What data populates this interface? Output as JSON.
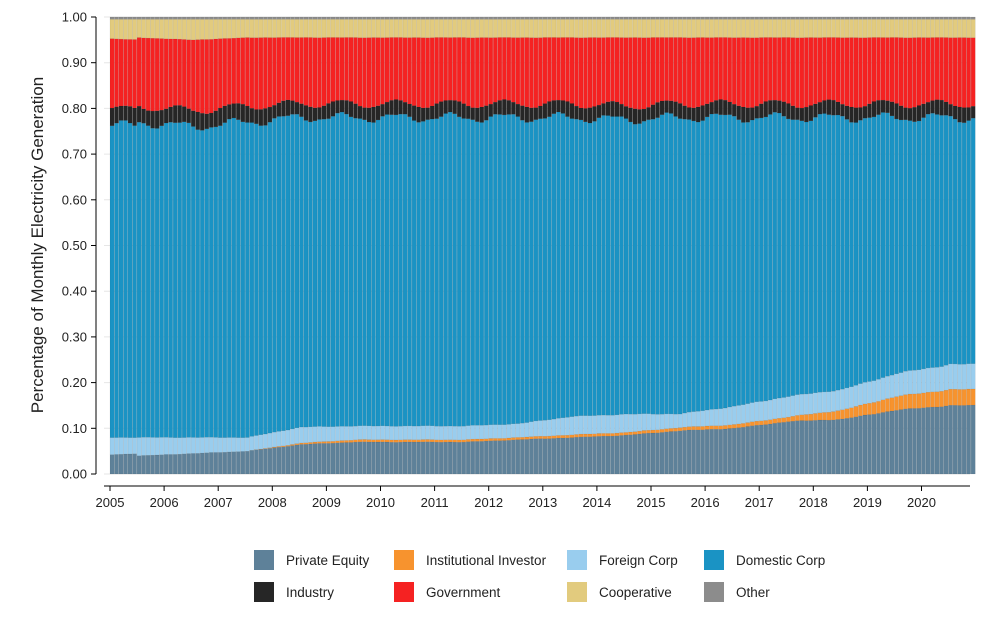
{
  "chart_data": {
    "type": "bar",
    "stacked": true,
    "title": "",
    "xlabel": "",
    "ylabel": "Percentage of Monthly Electricity Generation",
    "ylim": [
      0,
      1
    ],
    "y_ticks": [
      "0.00",
      "0.10",
      "0.20",
      "0.30",
      "0.40",
      "0.50",
      "0.60",
      "0.70",
      "0.80",
      "0.90",
      "1.00"
    ],
    "x_ticks": [
      "2005",
      "2006",
      "2007",
      "2008",
      "2009",
      "2010",
      "2011",
      "2012",
      "2013",
      "2014",
      "2015",
      "2016",
      "2017",
      "2018",
      "2019",
      "2020"
    ],
    "period": "monthly",
    "start": "2005-01",
    "months": 192,
    "grid": true,
    "legend_position": "bottom",
    "series": [
      {
        "name": "Private Equity",
        "color": "#5e8199",
        "annual_values": [
          0.04,
          0.045,
          0.05,
          0.065,
          0.07,
          0.07,
          0.07,
          0.075,
          0.08,
          0.085,
          0.095,
          0.1,
          0.115,
          0.12,
          0.14,
          0.15
        ]
      },
      {
        "name": "Institutional Investor",
        "color": "#f7932e",
        "annual_values": [
          0.0,
          0.0,
          0.0,
          0.003,
          0.005,
          0.005,
          0.005,
          0.005,
          0.006,
          0.006,
          0.007,
          0.008,
          0.01,
          0.02,
          0.03,
          0.035
        ]
      },
      {
        "name": "Foreign Corp",
        "color": "#99cdee",
        "annual_values": [
          0.04,
          0.035,
          0.03,
          0.035,
          0.03,
          0.03,
          0.03,
          0.03,
          0.04,
          0.04,
          0.03,
          0.04,
          0.045,
          0.045,
          0.05,
          0.055
        ]
      },
      {
        "name": "Domestic Corp",
        "color": "#1a93c4",
        "annual_values": [
          0.69,
          0.68,
          0.69,
          0.68,
          0.675,
          0.675,
          0.675,
          0.67,
          0.655,
          0.645,
          0.65,
          0.632,
          0.61,
          0.595,
          0.56,
          0.54
        ]
      },
      {
        "name": "Industry",
        "color": "#262626",
        "annual_values": [
          0.035,
          0.035,
          0.035,
          0.03,
          0.03,
          0.03,
          0.03,
          0.03,
          0.03,
          0.03,
          0.03,
          0.03,
          0.03,
          0.03,
          0.03,
          0.03
        ]
      },
      {
        "name": "Government",
        "color": "#f52222",
        "annual_values": [
          0.15,
          0.155,
          0.15,
          0.145,
          0.145,
          0.145,
          0.145,
          0.145,
          0.145,
          0.15,
          0.145,
          0.145,
          0.145,
          0.145,
          0.145,
          0.145
        ]
      },
      {
        "name": "Cooperative",
        "color": "#e2cb7e",
        "annual_values": [
          0.04,
          0.045,
          0.04,
          0.04,
          0.04,
          0.04,
          0.04,
          0.04,
          0.04,
          0.04,
          0.04,
          0.04,
          0.04,
          0.04,
          0.04,
          0.04
        ]
      },
      {
        "name": "Other",
        "color": "#8c8c8c",
        "annual_values": [
          0.005,
          0.005,
          0.005,
          0.005,
          0.005,
          0.005,
          0.005,
          0.005,
          0.005,
          0.005,
          0.005,
          0.005,
          0.005,
          0.005,
          0.005,
          0.005
        ]
      }
    ]
  }
}
